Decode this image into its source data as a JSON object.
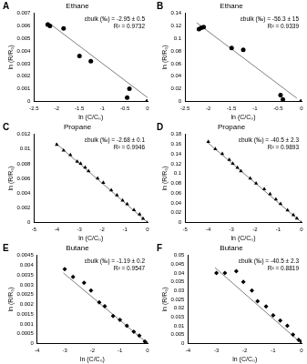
{
  "chart_data": [
    {
      "type": "scatter",
      "panel": "A",
      "title": "Ethane",
      "x_label": "ln (C/C₀)",
      "y_label": "ln (R/R₀)",
      "annotations": [
        "εbulk (‰) = -2.95 ± 0.5",
        "R² = 0.9732"
      ],
      "xlim": [
        -2.5,
        0
      ],
      "xticks": [
        -2.5,
        -2,
        -1.5,
        -1,
        -0.5,
        0
      ],
      "ylim": [
        0,
        0.007
      ],
      "yticks": [
        0,
        0.001,
        0.002,
        0.003,
        0.004,
        0.005,
        0.006,
        0.007
      ],
      "grid": false,
      "series": [
        {
          "type": "scatter",
          "marker": "circle",
          "color": "#000000",
          "x": [
            -2.2,
            -2.15,
            -1.85,
            -1.5,
            -1.25,
            -0.45,
            -0.4,
            0
          ],
          "y": [
            0.0061,
            0.006,
            0.0058,
            0.0036,
            0.0032,
            0.0003,
            0.001,
            0
          ]
        },
        {
          "type": "line",
          "line_style": "solid",
          "color": "#7f7f7f",
          "x": [
            -2.2,
            0
          ],
          "y": [
            0.0063,
            0.0003
          ]
        }
      ]
    },
    {
      "type": "scatter",
      "panel": "B",
      "title": "Ethane",
      "x_label": "ln (C/C₀)",
      "y_label": "ln (R/R₀)",
      "annotations": [
        "εbulk (‰) = -56.3 ± 15",
        "R² = 0.9339"
      ],
      "xlim": [
        -2.5,
        0
      ],
      "xticks": [
        -2.5,
        -2,
        -1.5,
        -1,
        -0.5,
        0
      ],
      "ylim": [
        0,
        0.14
      ],
      "yticks": [
        0,
        0.02,
        0.04,
        0.06,
        0.08,
        0.1,
        0.12,
        0.14
      ],
      "grid": false,
      "series": [
        {
          "type": "scatter",
          "marker": "circle",
          "color": "#000000",
          "x": [
            -2.2,
            -2.15,
            -2.1,
            -1.5,
            -1.25,
            -0.45,
            -0.4,
            0
          ],
          "y": [
            0.115,
            0.117,
            0.118,
            0.085,
            0.082,
            0.01,
            0.003,
            0
          ]
        },
        {
          "type": "line",
          "line_style": "solid",
          "color": "#7f7f7f",
          "x": [
            -2.25,
            -0.1
          ],
          "y": [
            0.125,
            0.005
          ]
        }
      ]
    },
    {
      "type": "scatter",
      "panel": "C",
      "title": "Propane",
      "x_label": "ln (C/C₀)",
      "y_label": "ln (R/R₀)",
      "annotations": [
        "εbulk (‰) = -2.68 ± 0.1",
        "R² = 0.9946"
      ],
      "xlim": [
        -5,
        0
      ],
      "xticks": [
        -5,
        -4,
        -3,
        -2,
        -1,
        0
      ],
      "ylim": [
        0,
        0.012
      ],
      "yticks": [
        0,
        0.002,
        0.004,
        0.006,
        0.008,
        0.01,
        0.012
      ],
      "grid": false,
      "series": [
        {
          "type": "scatter",
          "marker": "triangle",
          "color": "#000000",
          "x": [
            -4.0,
            -3.7,
            -3.4,
            -3.1,
            -2.95,
            -2.75,
            -2.6,
            -2.2,
            -1.95,
            -1.6,
            -1.35,
            -1.1,
            -0.9,
            -0.6,
            -0.35,
            -0.2,
            0
          ],
          "y": [
            0.0106,
            0.0098,
            0.0092,
            0.0083,
            0.008,
            0.0075,
            0.007,
            0.006,
            0.0054,
            0.0044,
            0.0037,
            0.003,
            0.0025,
            0.0017,
            0.0011,
            0.0005,
            0
          ]
        },
        {
          "type": "line",
          "line_style": "solid",
          "color": "#7f7f7f",
          "x": [
            -4.05,
            0
          ],
          "y": [
            0.0108,
            0
          ]
        }
      ]
    },
    {
      "type": "scatter",
      "panel": "D",
      "title": "Propane",
      "x_label": "ln (C/C₀)",
      "y_label": "ln (R/R₀)",
      "annotations": [
        "εbulk (‰) = -40.5 ± 2.3",
        "R² = 0.9893"
      ],
      "xlim": [
        -5,
        0
      ],
      "xticks": [
        -5,
        -4,
        -3,
        -2,
        -1,
        0
      ],
      "ylim": [
        0,
        0.18
      ],
      "yticks": [
        0,
        0.02,
        0.04,
        0.06,
        0.08,
        0.1,
        0.12,
        0.14,
        0.16,
        0.18
      ],
      "grid": false,
      "series": [
        {
          "type": "scatter",
          "marker": "triangle",
          "color": "#000000",
          "x": [
            -4.0,
            -3.7,
            -3.4,
            -3.1,
            -2.95,
            -2.75,
            -2.6,
            -2.2,
            -1.95,
            -1.6,
            -1.35,
            -1.1,
            -0.9,
            -0.6,
            -0.35,
            -0.2,
            0
          ],
          "y": [
            0.165,
            0.15,
            0.14,
            0.128,
            0.12,
            0.112,
            0.105,
            0.09,
            0.08,
            0.068,
            0.058,
            0.047,
            0.038,
            0.025,
            0.015,
            0.008,
            0
          ]
        },
        {
          "type": "line",
          "line_style": "solid",
          "color": "#7f7f7f",
          "x": [
            -4.05,
            0
          ],
          "y": [
            0.164,
            0
          ]
        }
      ]
    },
    {
      "type": "scatter",
      "panel": "E",
      "title": "Butane",
      "x_label": "ln (C/C₀)",
      "y_label": "ln (R/R₀)",
      "annotations": [
        "εbulk (‰) = -1.19 ± 0.2",
        "R² = 0.9547"
      ],
      "xlim": [
        -4,
        0
      ],
      "xticks": [
        -4,
        -3,
        -2,
        -1,
        0
      ],
      "ylim": [
        0,
        0.0045
      ],
      "yticks": [
        0,
        0.0005,
        0.001,
        0.0015,
        0.002,
        0.0025,
        0.003,
        0.0035,
        0.004,
        0.0045
      ],
      "grid": false,
      "series": [
        {
          "type": "scatter",
          "marker": "diamond",
          "color": "#000000",
          "x": [
            -3.0,
            -2.7,
            -2.3,
            -2.05,
            -1.75,
            -1.55,
            -1.25,
            -1.0,
            -0.75,
            -0.5,
            -0.3,
            -0.1,
            0
          ],
          "y": [
            0.0038,
            0.0034,
            0.0031,
            0.0027,
            0.0021,
            0.0019,
            0.0014,
            0.0012,
            0.0009,
            0.0006,
            0.0004,
            0.0001,
            0
          ]
        },
        {
          "type": "line",
          "line_style": "solid",
          "color": "#7f7f7f",
          "x": [
            -3.05,
            0
          ],
          "y": [
            0.0036,
            0
          ]
        }
      ]
    },
    {
      "type": "scatter",
      "panel": "F",
      "title": "Butane",
      "x_label": "ln (C/C₀)",
      "y_label": "ln (R/R₀)",
      "annotations": [
        "εbulk (‰) = -40.5 ± 2.3",
        "R² = 0.8819"
      ],
      "xlim": [
        -4,
        0
      ],
      "xticks": [
        -4,
        -3,
        -2,
        -1,
        0
      ],
      "ylim": [
        0,
        0.05
      ],
      "yticks": [
        0,
        0.005,
        0.01,
        0.015,
        0.02,
        0.025,
        0.03,
        0.035,
        0.04,
        0.045,
        0.05
      ],
      "grid": false,
      "series": [
        {
          "type": "scatter",
          "marker": "diamond",
          "color": "#000000",
          "x": [
            -3.0,
            -2.7,
            -2.3,
            -2.05,
            -1.75,
            -1.55,
            -1.25,
            -1.0,
            -0.75,
            -0.5,
            -0.3,
            -0.1,
            0,
            0
          ],
          "y": [
            0.04,
            0.04,
            0.041,
            0.035,
            0.03,
            0.024,
            0.021,
            0.016,
            0.013,
            0.01,
            0.005,
            0.002,
            0.001,
            0
          ]
        },
        {
          "type": "line",
          "line_style": "solid",
          "color": "#7f7f7f",
          "x": [
            -3.05,
            0
          ],
          "y": [
            0.043,
            0
          ]
        }
      ]
    }
  ]
}
